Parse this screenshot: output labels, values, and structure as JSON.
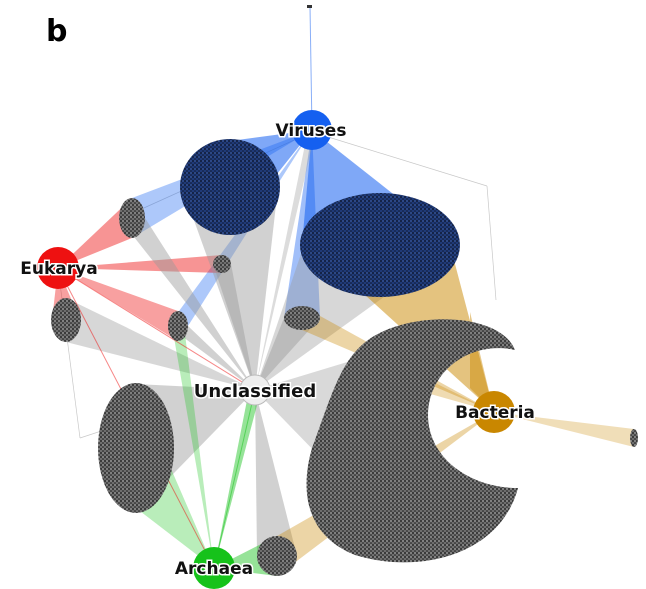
{
  "panel_label": "b",
  "palette": {
    "viruses": "#1560f0",
    "eukarya": "#ee1111",
    "bacteria": "#c98700",
    "archaea": "#16c21a",
    "unclassified": "#eeeeee",
    "gray_edge": "#9a9a9a",
    "cluster_dot": "#2a2a2a"
  },
  "nodes": [
    {
      "id": "viruses",
      "label": "Viruses"
    },
    {
      "id": "eukarya",
      "label": "Eukarya"
    },
    {
      "id": "unclassified",
      "label": "Unclassified"
    },
    {
      "id": "bacteria",
      "label": "Bacteria"
    },
    {
      "id": "archaea",
      "label": "Archaea"
    }
  ]
}
